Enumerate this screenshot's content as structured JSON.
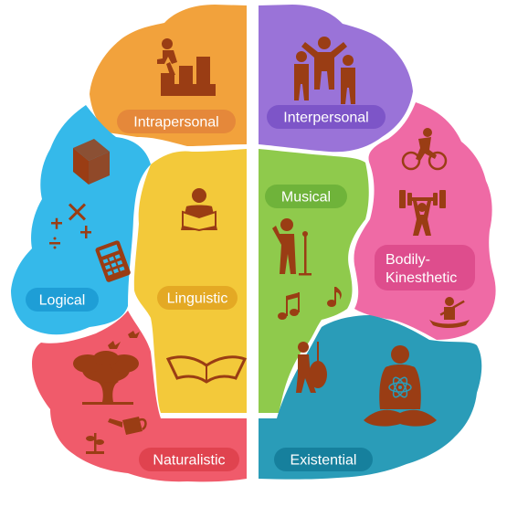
{
  "intelligences": {
    "intrapersonal": {
      "label": "Intrapersonal",
      "color": "#f2a23c",
      "pill": "#e5883a"
    },
    "interpersonal": {
      "label": "Interpersonal",
      "color": "#9a73d8",
      "pill": "#7d55c8"
    },
    "logical": {
      "label": "Logical",
      "color": "#35b9ea",
      "pill": "#1e9ed6"
    },
    "linguistic": {
      "label": "Linguistic",
      "color": "#f3c93a",
      "pill": "#e4a924"
    },
    "musical": {
      "label": "Musical",
      "color": "#8fca4c",
      "pill": "#6fb33a"
    },
    "bodily": {
      "label_line1": "Bodily-",
      "label_line2": "Kinesthetic",
      "color": "#ef6aa5",
      "pill": "#de4d8d"
    },
    "naturalistic": {
      "label": "Naturalistic",
      "color": "#f05b6b",
      "pill": "#e0434f"
    },
    "existential": {
      "label": "Existential",
      "color": "#2a9cb8",
      "pill": "#16809d"
    }
  },
  "icon_color": "#9a3d14",
  "icons": {
    "intrapersonal": "climbing-stairs-icon",
    "interpersonal": "group-cheering-icon",
    "logical": [
      "rubiks-cube-icon",
      "math-operators-icon",
      "calculator-icon"
    ],
    "linguistic": "person-reading-icon",
    "musical": [
      "singer-with-microphone-icon",
      "music-note-icon",
      "music-note-icon",
      "cellist-icon"
    ],
    "bodily": [
      "cyclist-icon",
      "weightlifter-icon",
      "kayaker-icon"
    ],
    "naturalistic": [
      "tree-icon",
      "birds-icon",
      "watering-can-icon",
      "plant-icon"
    ],
    "existential": "meditation-icon"
  }
}
